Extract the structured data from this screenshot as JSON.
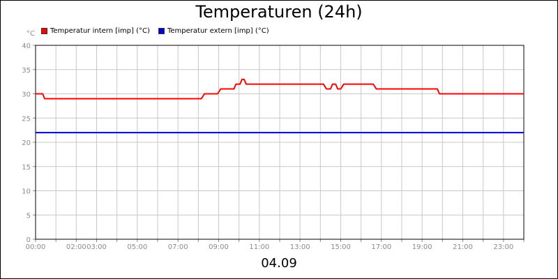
{
  "title": "Temperaturen (24h)",
  "date": "04.09",
  "unit": "°C",
  "chart_data": {
    "type": "line",
    "title": "Temperaturen (24h)",
    "xlabel": "04.09",
    "ylabel": "°C",
    "xlim": [
      0,
      24
    ],
    "ylim": [
      0,
      40
    ],
    "grid": true,
    "legend_position": "top-left",
    "x_ticks": [
      "00:00",
      "02:00",
      "03:00",
      "05:00",
      "07:00",
      "09:00",
      "11:00",
      "13:00",
      "15:00",
      "17:00",
      "19:00",
      "21:00",
      "23:00"
    ],
    "x_tick_values": [
      0,
      2,
      3,
      5,
      7,
      9,
      11,
      13,
      15,
      17,
      19,
      21,
      23
    ],
    "y_ticks": [
      "0",
      "5",
      "10",
      "15",
      "20",
      "25",
      "30",
      "35",
      "40"
    ],
    "y_tick_values": [
      0,
      5,
      10,
      15,
      20,
      25,
      30,
      35,
      40
    ],
    "series": [
      {
        "name": "Temperatur intern [imp] (°C)",
        "color": "#ff0000",
        "x": [
          0,
          0.35,
          0.45,
          8.15,
          8.3,
          8.95,
          9.1,
          9.75,
          9.85,
          10.05,
          10.15,
          10.25,
          10.35,
          14.15,
          14.3,
          14.5,
          14.6,
          14.75,
          14.85,
          15.0,
          15.15,
          16.6,
          16.75,
          19.75,
          19.85,
          24
        ],
        "y": [
          30,
          30,
          29,
          29,
          30,
          30,
          31,
          31,
          32,
          32,
          33,
          33,
          32,
          32,
          31,
          31,
          32,
          32,
          31,
          31,
          32,
          32,
          31,
          31,
          30,
          30
        ]
      },
      {
        "name": "Temperatur extern [imp] (°C)",
        "color": "#0000dd",
        "x": [
          0,
          24
        ],
        "y": [
          22,
          22
        ]
      }
    ]
  }
}
